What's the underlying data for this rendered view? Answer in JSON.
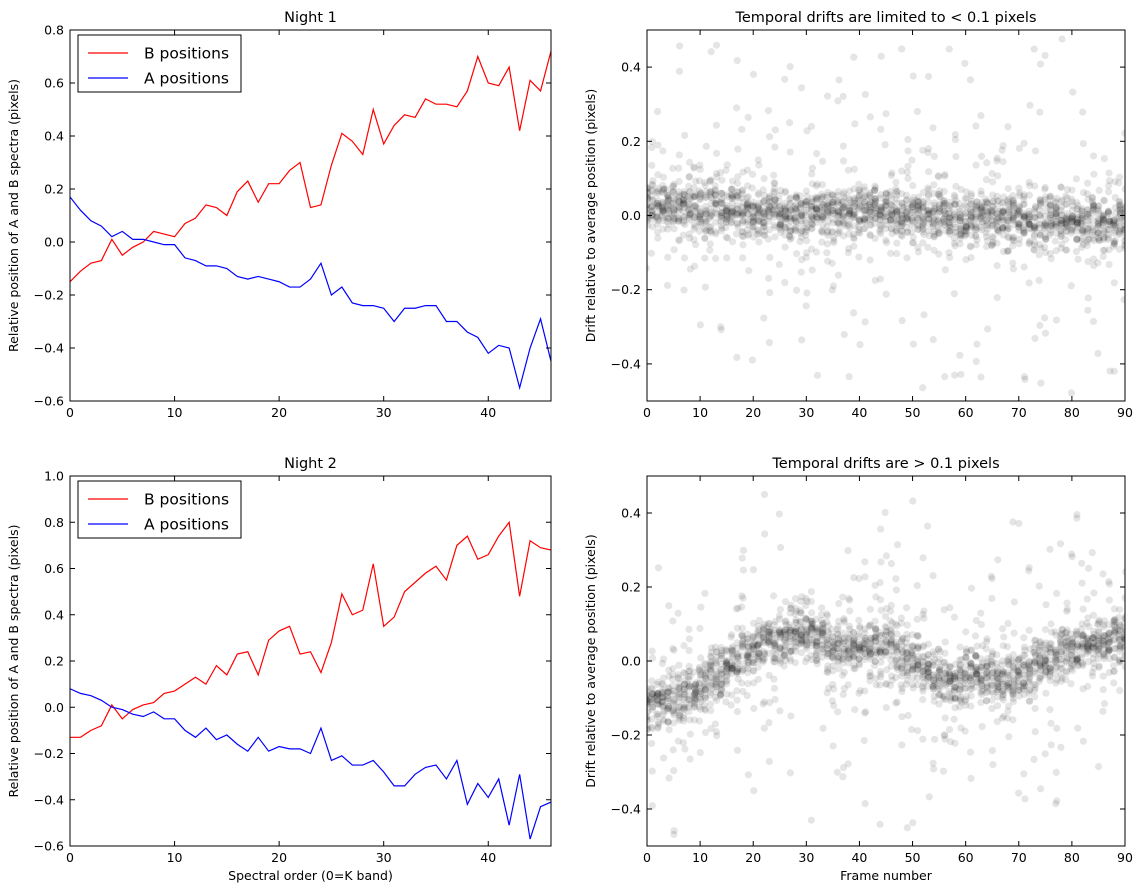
{
  "chart_data": [
    {
      "type": "line",
      "title": "Night 1",
      "xlabel": "",
      "ylabel": "Relative position of A and B spectra (pixels)",
      "xlim": [
        0,
        46
      ],
      "ylim": [
        -0.6,
        0.8
      ],
      "xticks": [
        0,
        10,
        20,
        30,
        40
      ],
      "yticks": [
        -0.6,
        -0.4,
        -0.2,
        0.0,
        0.2,
        0.4,
        0.6,
        0.8
      ],
      "tick_labels_y": [
        "−0.6",
        "−0.4",
        "−0.2",
        "0.0",
        "0.2",
        "0.4",
        "0.6",
        "0.8"
      ],
      "legend_position": "top-left",
      "x": [
        0,
        1,
        2,
        3,
        4,
        5,
        6,
        7,
        8,
        9,
        10,
        11,
        12,
        13,
        14,
        15,
        16,
        17,
        18,
        19,
        20,
        21,
        22,
        23,
        24,
        25,
        26,
        27,
        28,
        29,
        30,
        31,
        32,
        33,
        34,
        35,
        36,
        37,
        38,
        39,
        40,
        41,
        42,
        43,
        44,
        45,
        46
      ],
      "series": [
        {
          "name": "B positions",
          "color": "#ff0000",
          "values": [
            -0.15,
            -0.11,
            -0.08,
            -0.07,
            0.01,
            -0.05,
            -0.02,
            0.0,
            0.04,
            0.03,
            0.02,
            0.07,
            0.09,
            0.14,
            0.13,
            0.1,
            0.19,
            0.23,
            0.15,
            0.22,
            0.22,
            0.27,
            0.3,
            0.13,
            0.14,
            0.29,
            0.41,
            0.38,
            0.33,
            0.5,
            0.37,
            0.44,
            0.48,
            0.47,
            0.54,
            0.52,
            0.52,
            0.51,
            0.57,
            0.7,
            0.6,
            0.59,
            0.66,
            0.42,
            0.61,
            0.57,
            0.72
          ]
        },
        {
          "name": "A positions",
          "color": "#0000ff",
          "values": [
            0.17,
            0.12,
            0.08,
            0.06,
            0.02,
            0.04,
            0.01,
            0.01,
            0.0,
            -0.01,
            -0.01,
            -0.06,
            -0.07,
            -0.09,
            -0.09,
            -0.1,
            -0.13,
            -0.14,
            -0.13,
            -0.14,
            -0.15,
            -0.17,
            -0.17,
            -0.14,
            -0.08,
            -0.2,
            -0.17,
            -0.23,
            -0.24,
            -0.24,
            -0.25,
            -0.3,
            -0.25,
            -0.25,
            -0.24,
            -0.24,
            -0.3,
            -0.3,
            -0.34,
            -0.36,
            -0.42,
            -0.39,
            -0.4,
            -0.55,
            -0.4,
            -0.29,
            -0.45
          ]
        }
      ]
    },
    {
      "type": "scatter",
      "title": "Temporal drifts are limited to < 0.1 pixels",
      "xlabel": "",
      "ylabel": "Drift relative to average position (pixels)",
      "xlim": [
        0,
        90
      ],
      "ylim": [
        -0.5,
        0.5
      ],
      "xticks": [
        0,
        10,
        20,
        30,
        40,
        50,
        60,
        70,
        80,
        90
      ],
      "yticks": [
        -0.4,
        -0.2,
        0.0,
        0.2,
        0.4
      ],
      "tick_labels_y": [
        "−0.4",
        "−0.2",
        "0.0",
        "0.2",
        "0.4"
      ],
      "point_color": "#000000",
      "point_alpha": 0.1,
      "points_per_frame": 24,
      "center_trend": [
        [
          0,
          0.03
        ],
        [
          10,
          0.02
        ],
        [
          20,
          0.01
        ],
        [
          30,
          0.0
        ],
        [
          40,
          0.01
        ],
        [
          50,
          0.0
        ],
        [
          60,
          0.0
        ],
        [
          70,
          -0.01
        ],
        [
          80,
          -0.01
        ],
        [
          90,
          -0.03
        ]
      ],
      "typical_spread": 0.06,
      "outlier_range": [
        -0.48,
        0.49
      ]
    },
    {
      "type": "line",
      "title": "Night 2",
      "xlabel": "Spectral order (0=K band)",
      "ylabel": "Relative position of A and B spectra (pixels)",
      "xlim": [
        0,
        46
      ],
      "ylim": [
        -0.6,
        1.0
      ],
      "xticks": [
        0,
        10,
        20,
        30,
        40
      ],
      "yticks": [
        -0.6,
        -0.4,
        -0.2,
        0.0,
        0.2,
        0.4,
        0.6,
        0.8,
        1.0
      ],
      "tick_labels_y": [
        "−0.6",
        "−0.4",
        "−0.2",
        "0.0",
        "0.2",
        "0.4",
        "0.6",
        "0.8",
        "1.0"
      ],
      "legend_position": "top-left",
      "x": [
        0,
        1,
        2,
        3,
        4,
        5,
        6,
        7,
        8,
        9,
        10,
        11,
        12,
        13,
        14,
        15,
        16,
        17,
        18,
        19,
        20,
        21,
        22,
        23,
        24,
        25,
        26,
        27,
        28,
        29,
        30,
        31,
        32,
        33,
        34,
        35,
        36,
        37,
        38,
        39,
        40,
        41,
        42,
        43,
        44,
        45,
        46
      ],
      "series": [
        {
          "name": "B positions",
          "color": "#ff0000",
          "values": [
            -0.13,
            -0.13,
            -0.1,
            -0.08,
            0.01,
            -0.05,
            -0.01,
            0.01,
            0.02,
            0.06,
            0.07,
            0.1,
            0.13,
            0.1,
            0.18,
            0.14,
            0.23,
            0.24,
            0.14,
            0.29,
            0.33,
            0.35,
            0.23,
            0.24,
            0.15,
            0.28,
            0.49,
            0.4,
            0.42,
            0.62,
            0.35,
            0.39,
            0.5,
            0.54,
            0.58,
            0.61,
            0.55,
            0.7,
            0.74,
            0.64,
            0.66,
            0.74,
            0.8,
            0.48,
            0.72,
            0.69,
            0.68
          ]
        },
        {
          "name": "A positions",
          "color": "#0000ff",
          "values": [
            0.08,
            0.06,
            0.05,
            0.03,
            0.0,
            -0.01,
            -0.03,
            -0.04,
            -0.02,
            -0.05,
            -0.05,
            -0.1,
            -0.13,
            -0.09,
            -0.14,
            -0.12,
            -0.16,
            -0.19,
            -0.13,
            -0.19,
            -0.17,
            -0.18,
            -0.18,
            -0.2,
            -0.09,
            -0.23,
            -0.21,
            -0.25,
            -0.25,
            -0.23,
            -0.28,
            -0.34,
            -0.34,
            -0.29,
            -0.26,
            -0.25,
            -0.31,
            -0.23,
            -0.42,
            -0.33,
            -0.39,
            -0.31,
            -0.51,
            -0.29,
            -0.57,
            -0.43,
            -0.41
          ]
        }
      ]
    },
    {
      "type": "scatter",
      "title": "Temporal drifts are > 0.1 pixels",
      "xlabel": "Frame number",
      "ylabel": "Drift relative to average position (pixels)",
      "xlim": [
        0,
        90
      ],
      "ylim": [
        -0.5,
        0.5
      ],
      "xticks": [
        0,
        10,
        20,
        30,
        40,
        50,
        60,
        70,
        80,
        90
      ],
      "yticks": [
        -0.4,
        -0.2,
        0.0,
        0.2,
        0.4
      ],
      "tick_labels_y": [
        "−0.4",
        "−0.2",
        "0.0",
        "0.2",
        "0.4"
      ],
      "point_color": "#000000",
      "point_alpha": 0.1,
      "points_per_frame": 24,
      "center_trend": [
        [
          0,
          -0.12
        ],
        [
          5,
          -0.1
        ],
        [
          10,
          -0.07
        ],
        [
          15,
          -0.02
        ],
        [
          20,
          0.03
        ],
        [
          25,
          0.06
        ],
        [
          30,
          0.08
        ],
        [
          35,
          0.05
        ],
        [
          40,
          0.04
        ],
        [
          45,
          0.04
        ],
        [
          50,
          0.0
        ],
        [
          55,
          -0.04
        ],
        [
          58,
          -0.07
        ],
        [
          62,
          -0.02
        ],
        [
          67,
          -0.06
        ],
        [
          72,
          -0.02
        ],
        [
          78,
          0.02
        ],
        [
          83,
          0.04
        ],
        [
          88,
          0.06
        ],
        [
          90,
          0.05
        ]
      ],
      "typical_spread": 0.06,
      "outlier_range": [
        -0.49,
        0.46
      ]
    }
  ]
}
